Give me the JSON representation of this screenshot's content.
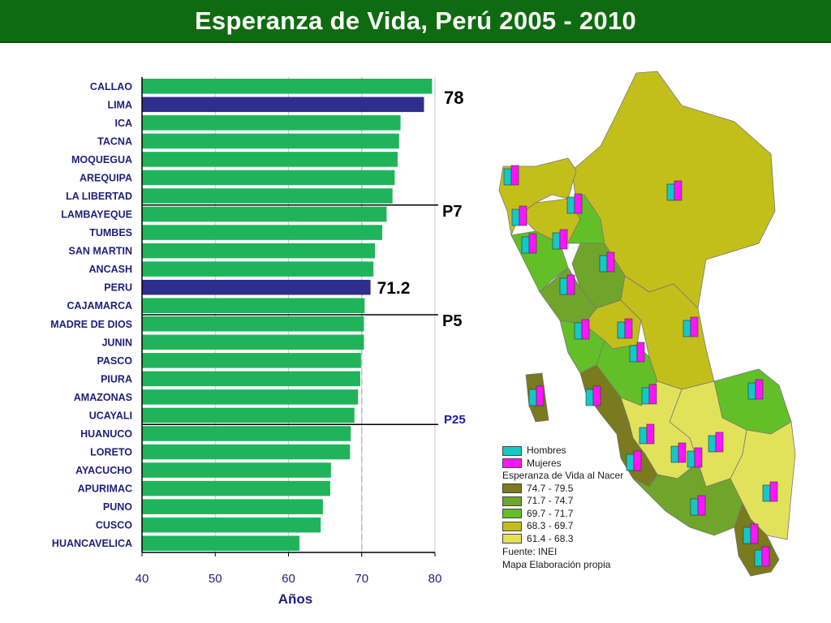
{
  "title": "Esperanza de Vida, Perú 2005 - 2010",
  "colors": {
    "bar": "#1fb45a",
    "highlight": "#2e2e8c",
    "title_bg": "#0f6b0f"
  },
  "chart_data": {
    "type": "bar",
    "orientation": "horizontal",
    "categories": [
      "CALLAO",
      "LIMA",
      "ICA",
      "TACNA",
      "MOQUEGUA",
      "AREQUIPA",
      "LA LIBERTAD",
      "LAMBAYEQUE",
      "TUMBES",
      "SAN MARTIN",
      "ANCASH",
      "PERU",
      "CAJAMARCA",
      "MADRE DE DIOS",
      "JUNIN",
      "PASCO",
      "PIURA",
      "AMAZONAS",
      "UCAYALI",
      "HUANUCO",
      "LORETO",
      "AYACUCHO",
      "APURIMAC",
      "PUNO",
      "CUSCO",
      "HUANCAVELICA"
    ],
    "values": [
      79.6,
      78.5,
      75.3,
      75.1,
      74.9,
      74.5,
      74.2,
      73.4,
      72.8,
      71.8,
      71.6,
      71.2,
      70.4,
      70.3,
      70.3,
      69.9,
      69.8,
      69.5,
      69.0,
      68.5,
      68.4,
      65.8,
      65.7,
      64.7,
      64.4,
      61.5
    ],
    "highlight": [
      "LIMA",
      "PERU"
    ],
    "xlabel": "Años",
    "xlim": [
      40,
      80
    ],
    "xticks": [
      40,
      50,
      60,
      70,
      80
    ],
    "reference_line": 70,
    "annotations": [
      {
        "label": "78"
      },
      {
        "label": "P7",
        "after": "LA LIBERTAD"
      },
      {
        "label": "71.2"
      },
      {
        "label": "P5",
        "after": "CAJAMARCA"
      },
      {
        "label": "P25",
        "after": "UCAYALI"
      }
    ]
  },
  "map": {
    "legend": {
      "hombres": "Hombres",
      "mujeres": "Mujeres",
      "heading": "Esperanza de Vida al Nacer",
      "classes": [
        {
          "range": "74.7 - 79.5",
          "color": "#7a7a1e"
        },
        {
          "range": "71.7 - 74.7",
          "color": "#6fa52a"
        },
        {
          "range": "69.7 - 71.7",
          "color": "#63bf27"
        },
        {
          "range": "68.3 - 69.7",
          "color": "#c3bf1a"
        },
        {
          "range": "61.4 - 68.3",
          "color": "#e2e25a"
        }
      ],
      "source": "Fuente: INEI",
      "note": "Mapa Elaboración propia"
    },
    "colors": {
      "hombres": "#14c8c8",
      "mujeres": "#ff14ff"
    }
  }
}
